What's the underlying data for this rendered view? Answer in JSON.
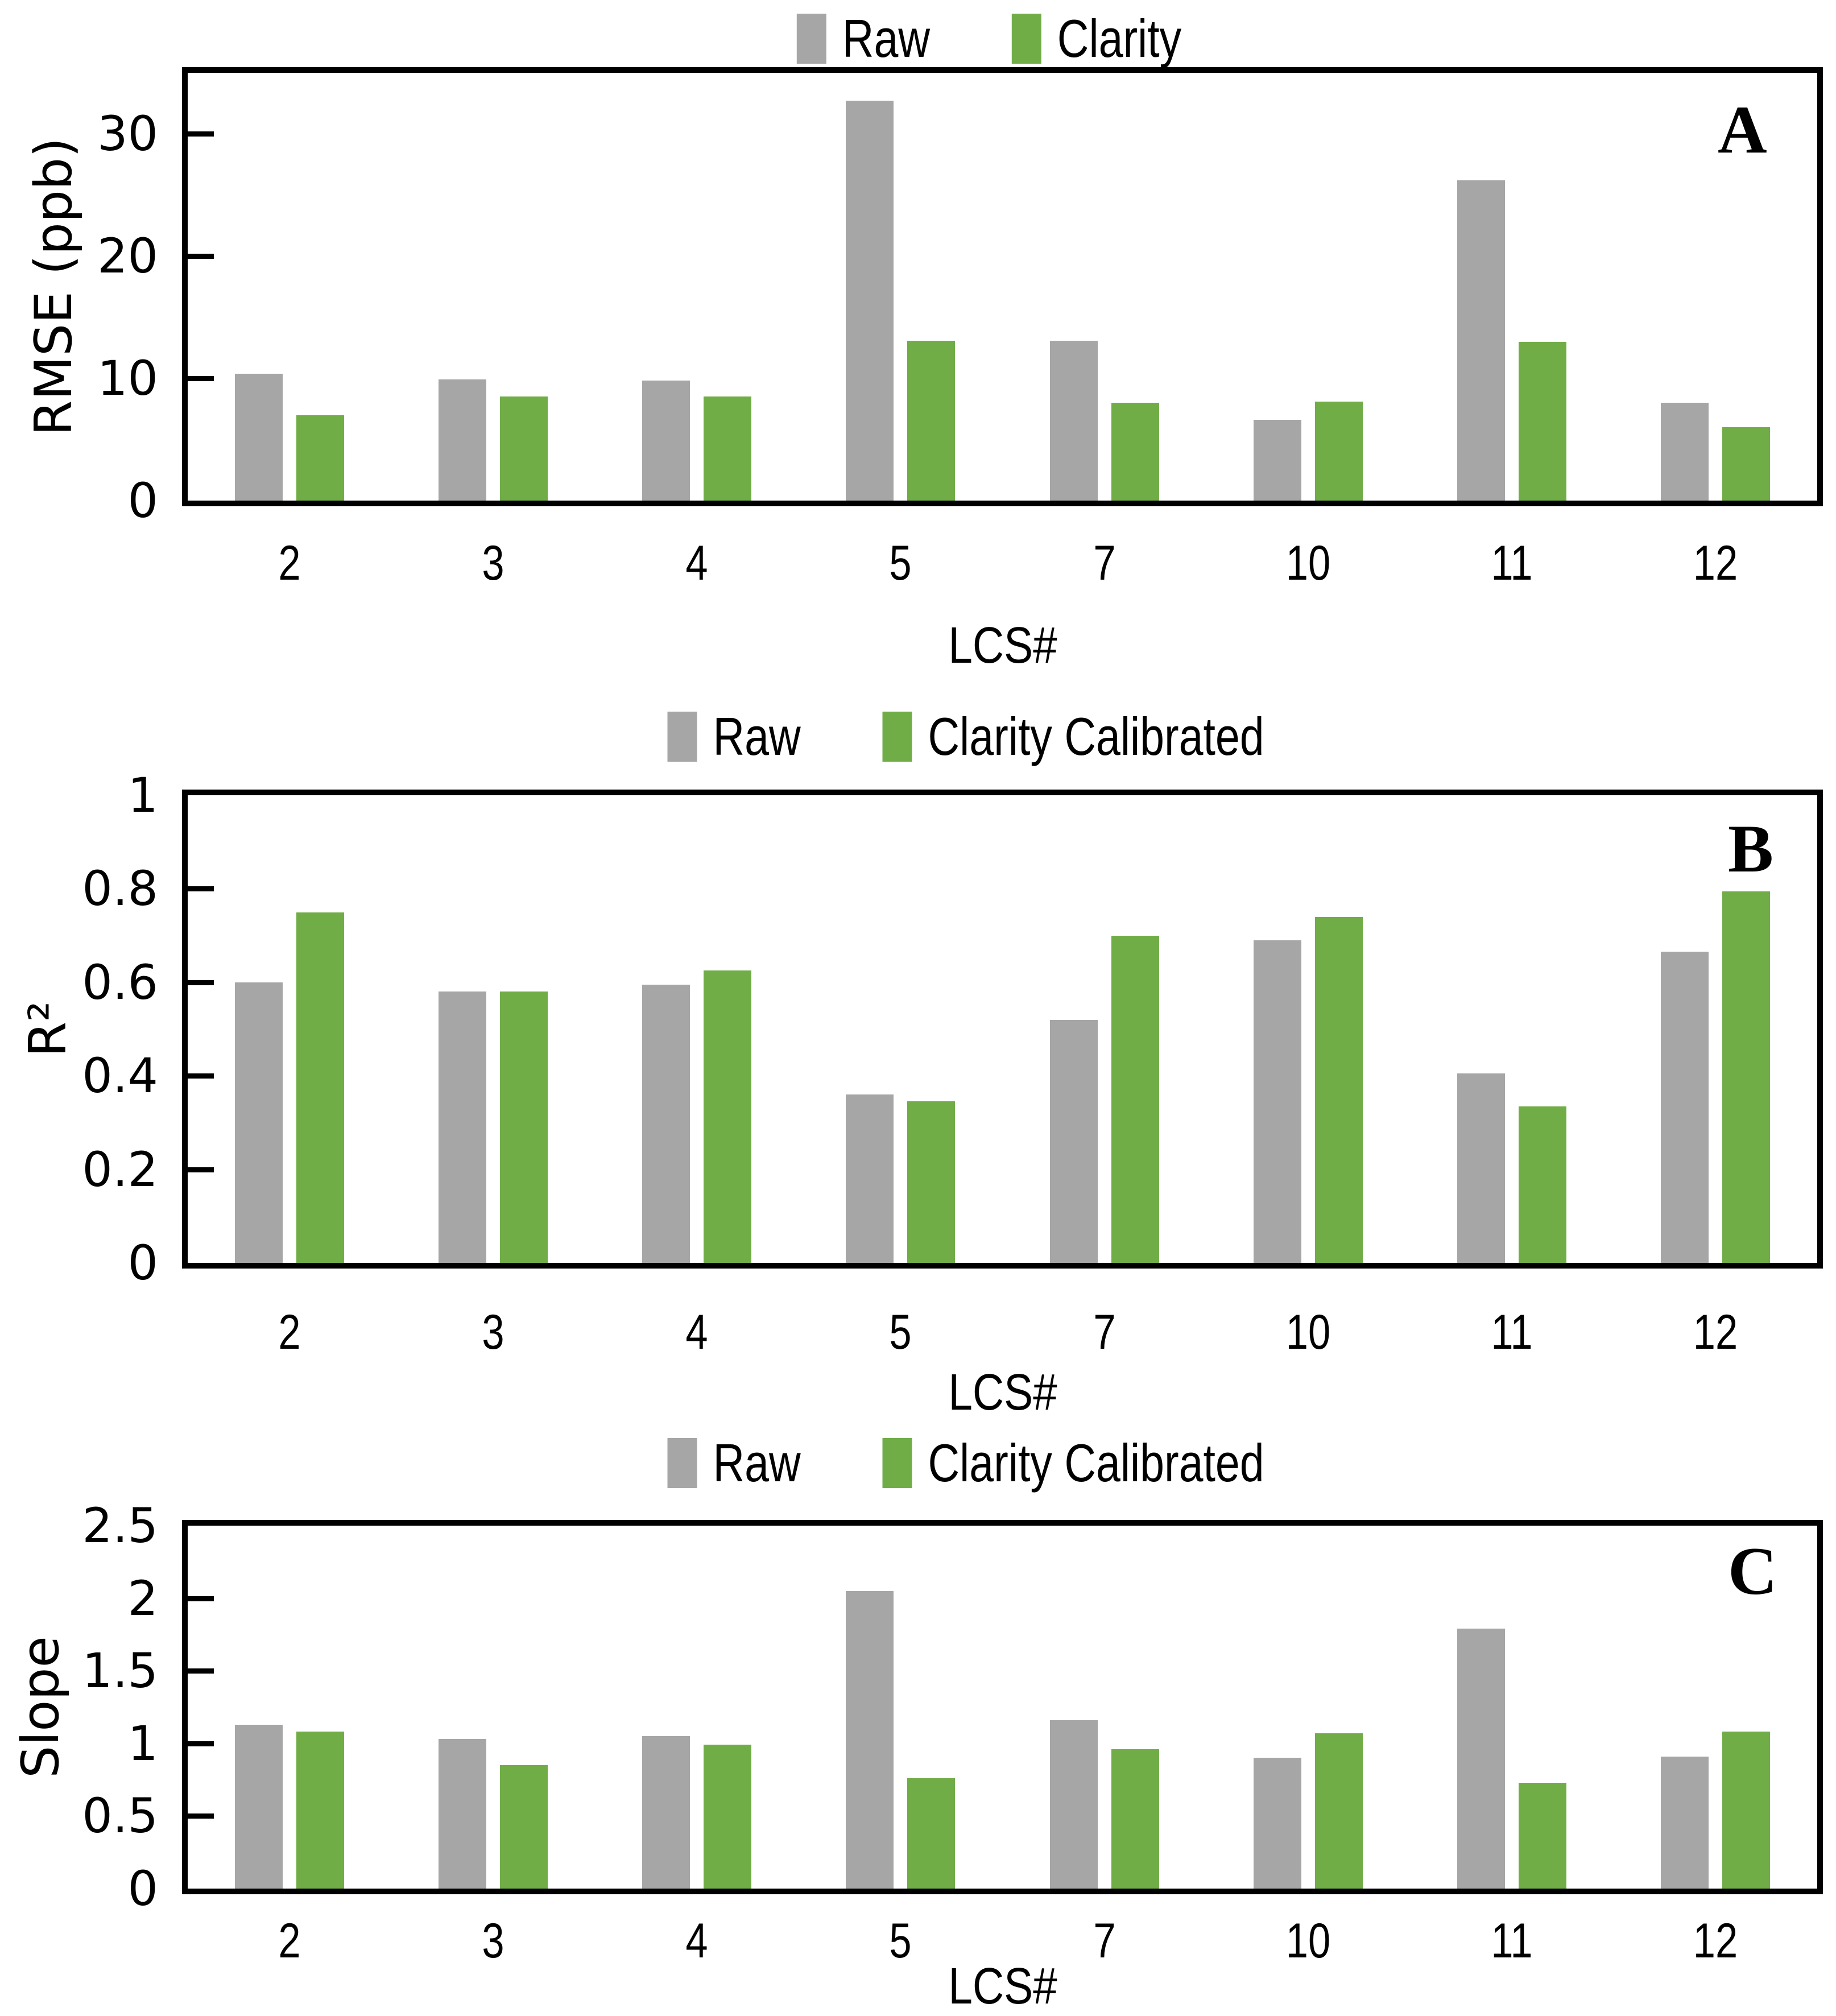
{
  "figure": {
    "background": "#FFFFFF",
    "colors": {
      "raw_gray": "#A6A6A6",
      "clarity_green": "#70AD47",
      "axis_black": "#000000"
    }
  },
  "chart_data": [
    {
      "id": "A",
      "type": "bar",
      "panel_label": "A",
      "ylabel": "RMSE (ppb)",
      "xlabel": "LCS#",
      "legend_position": "top-center",
      "grid": false,
      "categories": [
        "2",
        "3",
        "4",
        "5",
        "7",
        "10",
        "11",
        "12"
      ],
      "series": [
        {
          "name": "Raw",
          "color": "#A6A6A6",
          "values": [
            10.4,
            9.9,
            9.8,
            32.7,
            13.1,
            6.6,
            26.2,
            8.0
          ]
        },
        {
          "name": "Clarity",
          "color": "#70AD47",
          "values": [
            7.0,
            8.5,
            8.5,
            13.1,
            8.0,
            8.1,
            13.0,
            6.0
          ]
        }
      ],
      "ylim": [
        0,
        35
      ],
      "yticks": [
        {
          "value": 0,
          "label": "0"
        },
        {
          "value": 10,
          "label": "10"
        },
        {
          "value": 20,
          "label": "20"
        },
        {
          "value": 30,
          "label": "30"
        }
      ]
    },
    {
      "id": "B",
      "type": "bar",
      "panel_label": "B",
      "ylabel": "R²",
      "xlabel": "LCS#",
      "legend_position": "top-center",
      "grid": false,
      "categories": [
        "2",
        "3",
        "4",
        "5",
        "7",
        "10",
        "11",
        "12"
      ],
      "series": [
        {
          "name": "Raw",
          "color": "#A6A6A6",
          "values": [
            0.6,
            0.58,
            0.595,
            0.36,
            0.52,
            0.69,
            0.405,
            0.665
          ]
        },
        {
          "name": "Clarity Calibrated",
          "color": "#70AD47",
          "values": [
            0.75,
            0.58,
            0.625,
            0.345,
            0.7,
            0.74,
            0.335,
            0.795
          ]
        }
      ],
      "ylim": [
        0,
        1
      ],
      "yticks": [
        {
          "value": 0,
          "label": "0"
        },
        {
          "value": 0.2,
          "label": "0.2"
        },
        {
          "value": 0.4,
          "label": "0.4"
        },
        {
          "value": 0.6,
          "label": "0.6"
        },
        {
          "value": 0.8,
          "label": "0.8"
        },
        {
          "value": 1,
          "label": "1"
        }
      ]
    },
    {
      "id": "C",
      "type": "bar",
      "panel_label": "C",
      "ylabel": "Slope",
      "xlabel": "LCS#",
      "legend_position": "top-center",
      "grid": false,
      "categories": [
        "2",
        "3",
        "4",
        "5",
        "7",
        "10",
        "11",
        "12"
      ],
      "series": [
        {
          "name": "Raw",
          "color": "#A6A6A6",
          "values": [
            1.13,
            1.03,
            1.05,
            2.05,
            1.16,
            0.9,
            1.79,
            0.91
          ]
        },
        {
          "name": "Clarity Calibrated",
          "color": "#70AD47",
          "values": [
            1.08,
            0.85,
            0.99,
            0.76,
            0.96,
            1.07,
            0.73,
            1.08
          ]
        }
      ],
      "ylim": [
        0,
        2.5
      ],
      "yticks": [
        {
          "value": 0,
          "label": "0"
        },
        {
          "value": 0.5,
          "label": "0.5"
        },
        {
          "value": 1,
          "label": "1"
        },
        {
          "value": 1.5,
          "label": "1.5"
        },
        {
          "value": 2,
          "label": "2"
        },
        {
          "value": 2.5,
          "label": "2.5"
        }
      ]
    }
  ]
}
